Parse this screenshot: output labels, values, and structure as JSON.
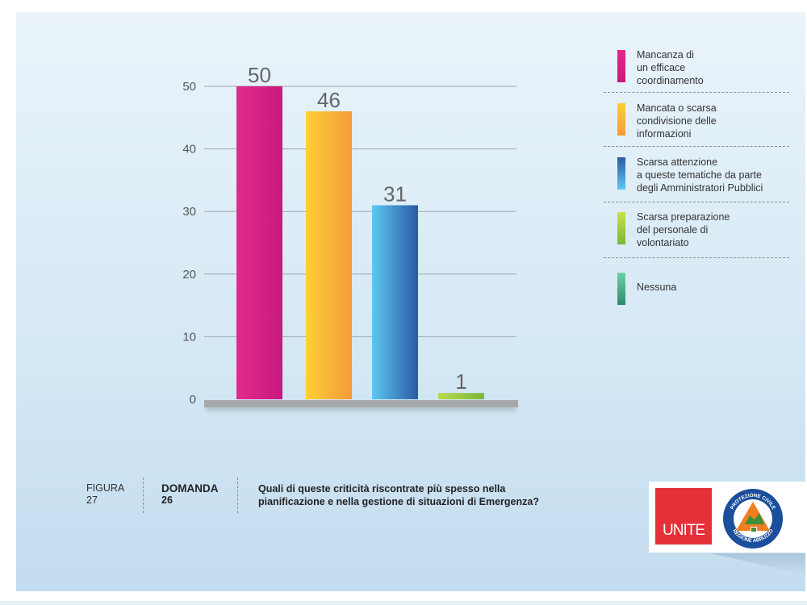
{
  "chart_data": {
    "type": "bar",
    "categories": [
      "Mancanza di un efficace coordinamento",
      "Mancata o scarsa condivisione delle informazioni",
      "Scarsa attenzione a queste tematiche da parte degli Amministratori Pubblici",
      "Scarsa preparazione del personale di volontariato",
      "Nessuna"
    ],
    "values": [
      50,
      46,
      31,
      1,
      0
    ],
    "data_labels": [
      "50",
      "46",
      "31",
      "1",
      ""
    ],
    "ylim": [
      0,
      50
    ],
    "yticks": [
      "0",
      "10",
      "20",
      "30",
      "40",
      "50"
    ],
    "grid": true,
    "legend_position": "right",
    "colors": [
      [
        "#e22a8e",
        "#c8197d"
      ],
      [
        "#fdd037",
        "#f59a3b"
      ],
      [
        "#5cc8ef",
        "#2a5aa6"
      ],
      [
        "#b9d94a",
        "#7ab83a"
      ],
      [
        "#6fcfa5",
        "#2e8b6e"
      ]
    ]
  },
  "legend": {
    "items": [
      {
        "lines": [
          "Mancanza di",
          "un efficace",
          "coordinamento"
        ]
      },
      {
        "lines": [
          "Mancata o scarsa",
          "condivisione delle",
          "informazioni"
        ]
      },
      {
        "lines": [
          "Scarsa attenzione",
          "a queste tematiche da parte",
          "degli Amministratori Pubblici"
        ]
      },
      {
        "lines": [
          "Scarsa preparazione",
          "del personale di",
          "volontariato"
        ]
      },
      {
        "lines": [
          "Nessuna"
        ]
      }
    ]
  },
  "caption": {
    "figure_label": "FIGURA",
    "figure_number": "27",
    "question_label": "DOMANDA",
    "question_number": "26",
    "question_line1": "Quali di queste criticità riscontrate più spesso nella",
    "question_line2": "pianificazione e nella gestione di situazioni di Emergenza?"
  },
  "logos": {
    "unite_text": "UNITE",
    "protezione_top": "PROTEZIONE CIVILE",
    "protezione_bottom": "REGIONE ABRUZZO"
  }
}
